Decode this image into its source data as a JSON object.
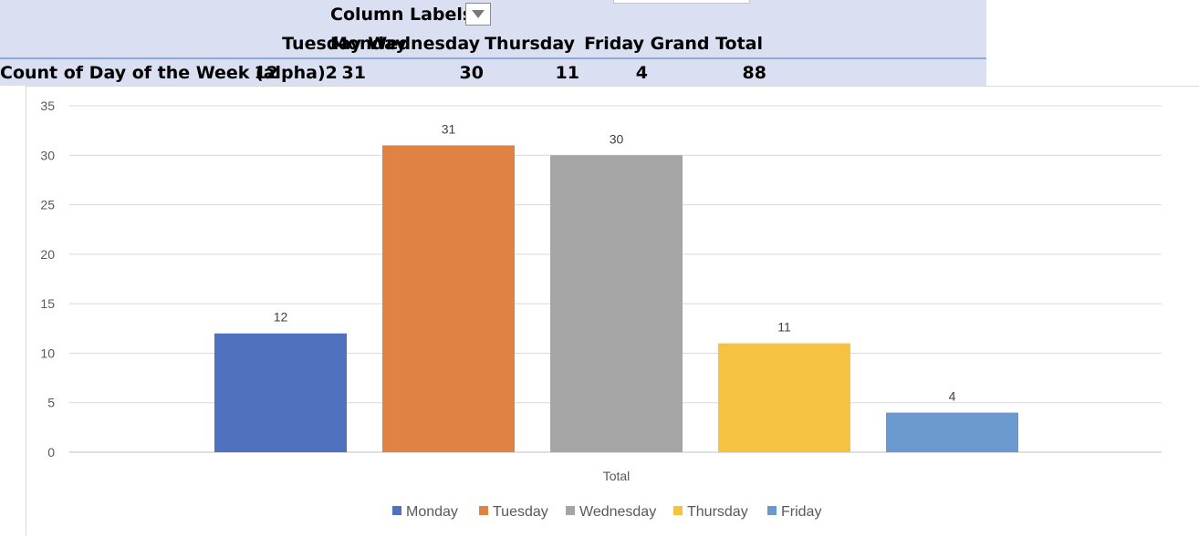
{
  "pivot": {
    "column_labels": "Column Labels",
    "headers": [
      "Monday",
      "Tuesday",
      "Wednesday",
      "Thursday",
      "Friday",
      "Grand Total"
    ],
    "row_label": "Count of Day of the Week (alpha)2",
    "values": [
      "12",
      "31",
      "30",
      "11",
      "4",
      "88"
    ],
    "colors": {
      "background": "#dae0f2",
      "rule": "#8ea9db"
    }
  },
  "chart_data": {
    "type": "bar",
    "categories": [
      "Total"
    ],
    "xlabel": "Total",
    "ylim": [
      0,
      35
    ],
    "yticks": [
      "0",
      "5",
      "10",
      "15",
      "20",
      "25",
      "30",
      "35"
    ],
    "grid": true,
    "legend_position": "bottom",
    "series": [
      {
        "name": "Monday",
        "values": [
          12
        ],
        "color": "#4f71be"
      },
      {
        "name": "Tuesday",
        "values": [
          31
        ],
        "color": "#df8244"
      },
      {
        "name": "Wednesday",
        "values": [
          30
        ],
        "color": "#a5a5a5"
      },
      {
        "name": "Thursday",
        "values": [
          11
        ],
        "color": "#f5c242"
      },
      {
        "name": "Friday",
        "values": [
          4
        ],
        "color": "#6a99d0"
      }
    ]
  }
}
